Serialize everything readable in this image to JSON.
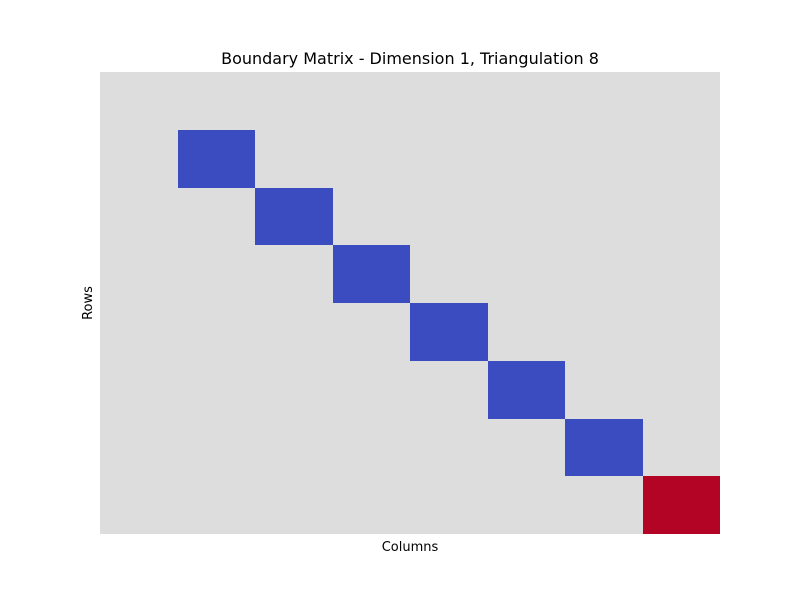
{
  "chart_data": {
    "type": "heatmap",
    "title": "Boundary Matrix - Dimension 1, Triangulation 8",
    "xlabel": "Columns",
    "ylabel": "Rows",
    "rows": 8,
    "columns": 8,
    "colormap": "coolwarm",
    "value_range": [
      -1,
      1
    ],
    "colorbar": false,
    "ticks": false,
    "grid": false,
    "values": [
      [
        0,
        0,
        0,
        0,
        0,
        0,
        0,
        0
      ],
      [
        0,
        -1,
        0,
        0,
        0,
        0,
        0,
        0
      ],
      [
        0,
        0,
        -1,
        0,
        0,
        0,
        0,
        0
      ],
      [
        0,
        0,
        0,
        -1,
        0,
        0,
        0,
        0
      ],
      [
        0,
        0,
        0,
        0,
        -1,
        0,
        0,
        0
      ],
      [
        0,
        0,
        0,
        0,
        0,
        -1,
        0,
        0
      ],
      [
        0,
        0,
        0,
        0,
        0,
        0,
        -1,
        0
      ],
      [
        0,
        0,
        0,
        0,
        0,
        0,
        0,
        1
      ]
    ],
    "colors": {
      "negative": "#3b4cc0",
      "zero": "#dddddd",
      "positive": "#b40426"
    }
  }
}
